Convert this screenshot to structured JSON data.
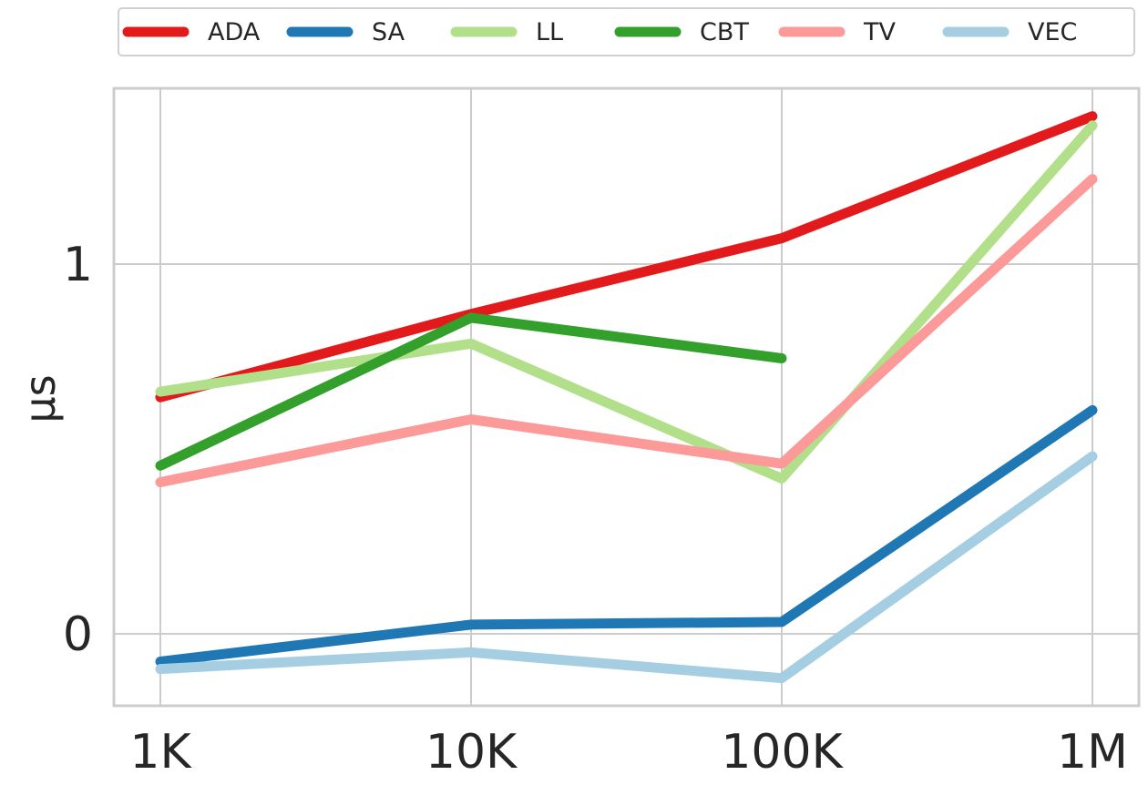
{
  "chart_data": {
    "type": "line",
    "title": "",
    "xlabel": "",
    "ylabel": "µs",
    "categories": [
      "1K",
      "10K",
      "100K",
      "1M"
    ],
    "yticks": [
      0,
      1
    ],
    "ylim": [
      -0.19,
      1.48
    ],
    "grid": true,
    "legend_position": "top",
    "series": [
      {
        "name": "ADA",
        "color": "#e31a1c",
        "values": [
          0.64,
          0.865,
          1.07,
          1.4
        ]
      },
      {
        "name": "SA",
        "color": "#1f78b4",
        "values": [
          -0.075,
          0.025,
          0.032,
          0.605
        ]
      },
      {
        "name": "LL",
        "color": "#b2df8a",
        "values": [
          0.655,
          0.785,
          0.42,
          1.375
        ]
      },
      {
        "name": "CBT",
        "color": "#33a02c",
        "values": [
          0.455,
          0.855,
          0.745,
          null
        ]
      },
      {
        "name": "TV",
        "color": "#fb9a99",
        "values": [
          0.41,
          0.58,
          0.46,
          1.23
        ]
      },
      {
        "name": "VEC",
        "color": "#a6cee3",
        "values": [
          -0.095,
          -0.05,
          -0.12,
          0.48
        ]
      }
    ]
  }
}
